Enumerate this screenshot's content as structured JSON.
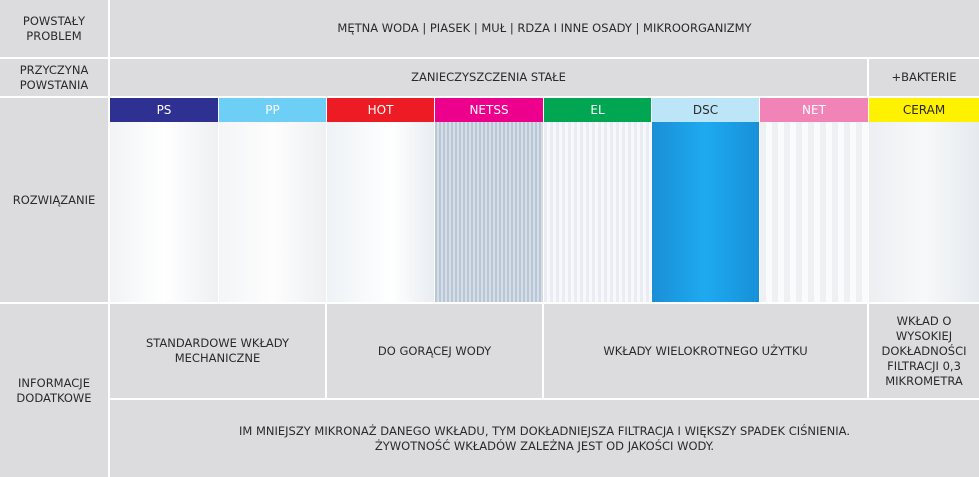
{
  "rows": {
    "problem_label": "POWSTAŁY PROBLEM",
    "problem": "MĘTNA WODA | PIASEK | MUŁ | RDZA I INNE OSADY | MIKROORGANIZMY",
    "cause_label": "PRZYCZYNA POWSTANIA",
    "cause_solid": "ZANIECZYSZCZENIA STAŁE",
    "cause_bacteria": "+BAKTERIE",
    "solution_label": "ROZWIĄZANIE",
    "info_label": "INFORMACJE DODATKOWE",
    "info_standard": "STANDARDOWE WKŁADY MECHANICZNE",
    "info_hot": "DO GORĄCEJ WODY",
    "info_reusable": "WKŁADY WIELOKROTNEGO UŻYTKU",
    "info_ceram": "WKŁAD O WYSOKIEJ DOKŁADNOŚCI FILTRACJI 0,3 MIKROMETRA",
    "note_line1": "IM MNIEJSZY MIKRONAŻ DANEGO WKŁADU, TYM DOKŁADNIEJSZA FILTRACJA I WIĘKSZY SPADEK CIŚNIENIA.",
    "note_line2": "ŻYWOTNOŚĆ WKŁADÓW ZALEŻNA JEST OD JAKOŚCI WODY."
  },
  "filters": [
    {
      "name": "PS",
      "color": "#2e3192",
      "text": "#fff"
    },
    {
      "name": "PP",
      "color": "#6dcff6",
      "text": "#fff"
    },
    {
      "name": "HOT",
      "color": "#ed1c24",
      "text": "#fff"
    },
    {
      "name": "NETSS",
      "color": "#ec008c",
      "text": "#fff"
    },
    {
      "name": "EL",
      "color": "#00a651",
      "text": "#fff"
    },
    {
      "name": "DSC",
      "color": "#bde5f8",
      "text": "#2a2a2a"
    },
    {
      "name": "NET",
      "color": "#f283b6",
      "text": "#fff"
    },
    {
      "name": "CERAM",
      "color": "#fff200",
      "text": "#2a2a2a"
    }
  ]
}
